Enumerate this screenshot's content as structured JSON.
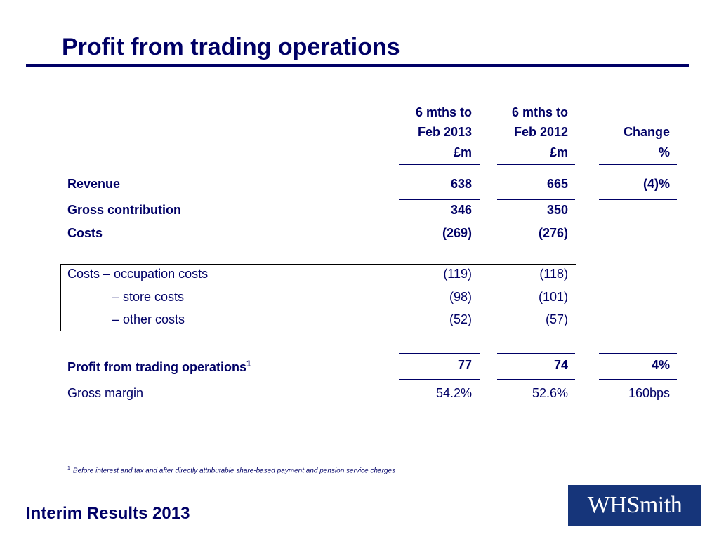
{
  "title": "Profit from trading operations",
  "columns": [
    {
      "line1": "6 mths to",
      "line2": "Feb 2013",
      "line3": "£m"
    },
    {
      "line1": "6 mths to",
      "line2": "Feb 2012",
      "line3": "£m"
    },
    {
      "line1": "",
      "line2": "Change",
      "line3": "%"
    }
  ],
  "rows": {
    "revenue": {
      "label": "Revenue",
      "v1": "638",
      "v2": "665",
      "v3": "(4)%"
    },
    "gross_contribution": {
      "label": "Gross contribution",
      "v1": "346",
      "v2": "350",
      "v3": ""
    },
    "costs": {
      "label": "Costs",
      "v1": "(269)",
      "v2": "(276)",
      "v3": ""
    },
    "occupation_costs": {
      "label": "Costs – occupation costs",
      "v1": "(119)",
      "v2": "(118)"
    },
    "store_costs": {
      "label": "– store costs",
      "v1": "(98)",
      "v2": "(101)"
    },
    "other_costs": {
      "label": "– other costs",
      "v1": "(52)",
      "v2": "(57)"
    },
    "profit": {
      "label": "Profit from trading operations",
      "superscript": "1",
      "v1": "77",
      "v2": "74",
      "v3": "4%"
    },
    "gross_margin": {
      "label": "Gross margin",
      "v1": "54.2%",
      "v2": "52.6%",
      "v3": "160bps"
    }
  },
  "footnote": {
    "marker": "1",
    "text": "Before interest and tax and after directly attributable share-based payment and pension service charges"
  },
  "footer": "Interim Results 2013",
  "logo": "WHSmith",
  "colors": {
    "navy": "#000066",
    "logo_bg": "#16357a"
  }
}
